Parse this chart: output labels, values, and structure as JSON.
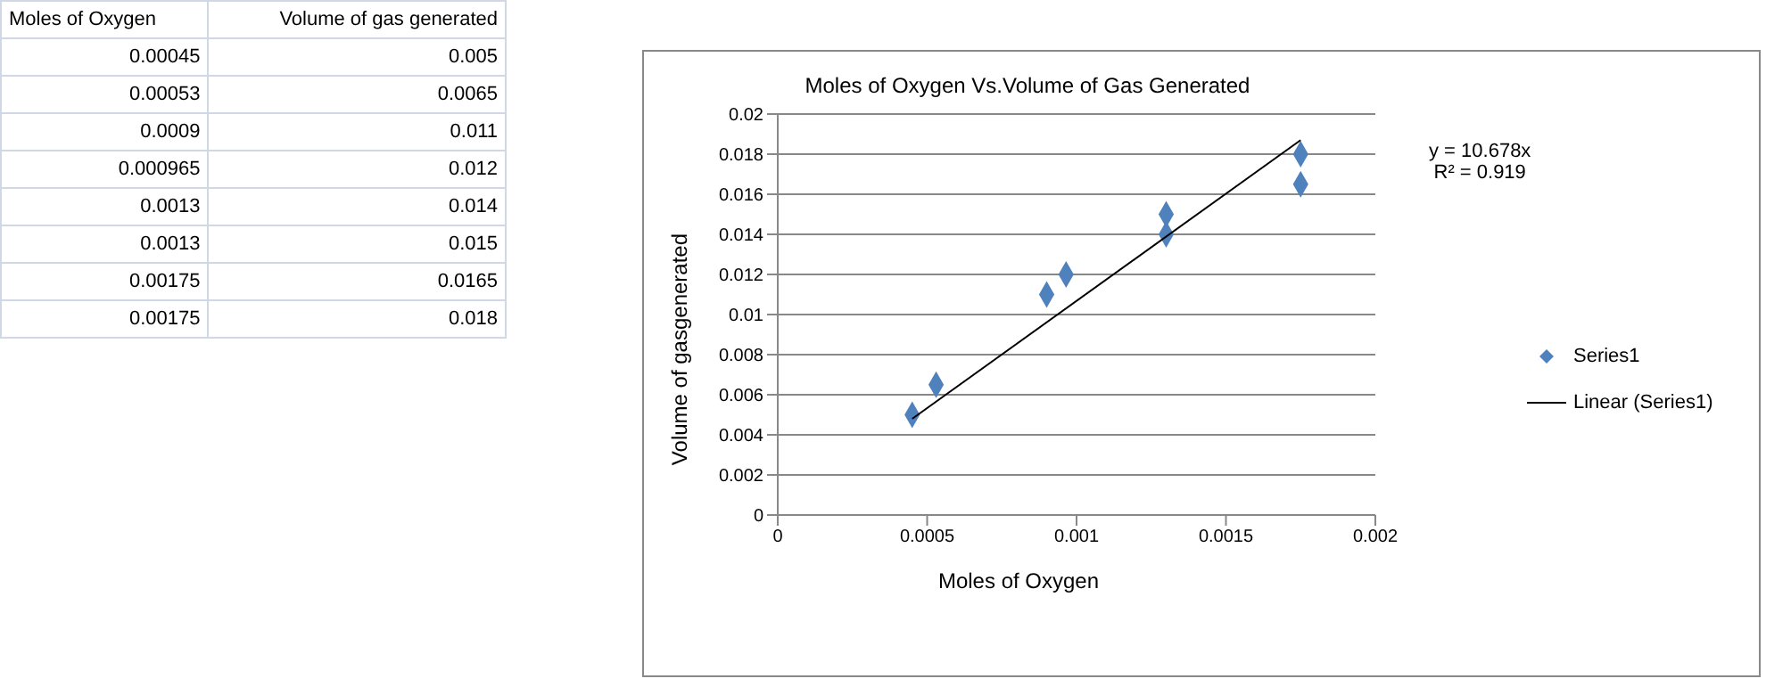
{
  "chart_data": [
    {
      "type": "other",
      "annotations": [
        "Moles of Oxygen",
        "Volume of gas generated",
        "0.00045",
        "0.005",
        "0.00053",
        "0.0065",
        "0.0009",
        "0.011",
        "0.000965",
        "0.012",
        "0.0013",
        "0.014",
        "0.0013",
        "0.015",
        "0.00175",
        "0.0165",
        "0.00175",
        "0.018"
      ]
    },
    {
      "type": "scatter",
      "title": "Moles of Oxygen Vs.Volume of Gas Generated",
      "xlabel": "Moles  of Oxygen",
      "ylabel": "Volume of gasgenerated",
      "xlim": [
        0,
        0.002
      ],
      "xticks": [
        0,
        0.0005,
        0.001,
        0.0015,
        0.002
      ],
      "ylim": [
        0,
        0.02
      ],
      "yticks": [
        0,
        0.002,
        0.004,
        0.006,
        0.008,
        0.01,
        0.012,
        0.014,
        0.016,
        0.018,
        0.02
      ],
      "grid": "y",
      "legend": "right",
      "marker": "diamond",
      "annotations": [
        "y = 10.678x",
        "R² = 0.919"
      ],
      "series": [
        {
          "name": "Series1",
          "color": "#4f81bd",
          "x": [
            0.00045,
            0.00053,
            0.0009,
            0.000965,
            0.0013,
            0.0013,
            0.00175,
            0.00175
          ],
          "values": [
            0.005,
            0.0065,
            0.011,
            0.012,
            0.014,
            0.015,
            0.0165,
            0.018
          ]
        },
        {
          "name": "Linear (Series1)",
          "type": "line",
          "marker": "none",
          "color": "#000000",
          "x": [
            0.00045,
            0.00175
          ],
          "values": [
            0.0048,
            0.0187
          ]
        }
      ]
    }
  ]
}
